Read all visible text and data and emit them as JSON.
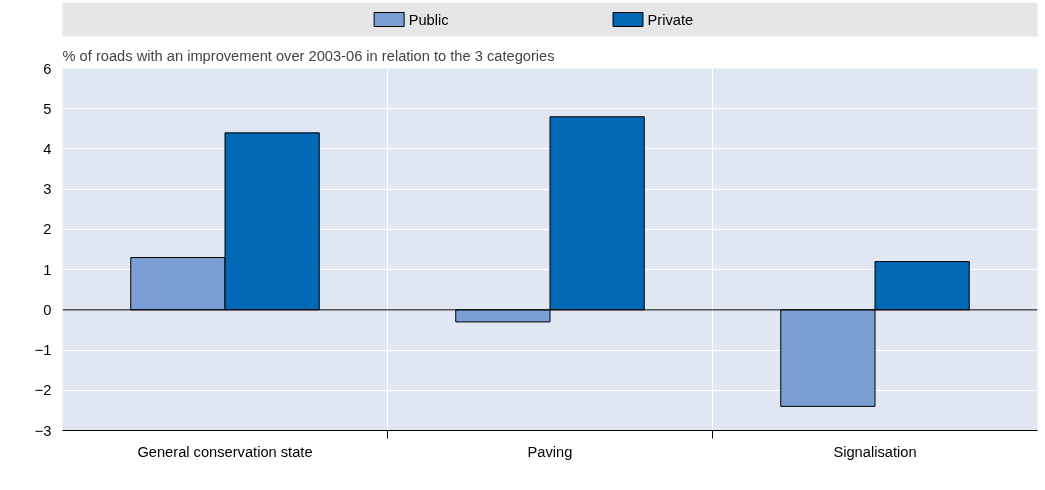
{
  "chart_data": {
    "type": "bar",
    "ylabel": "% of roads with an improvement over 2003-06 in relation to the 3 categories",
    "categories": [
      "General conservation state",
      "Paving",
      "Signalisation"
    ],
    "series": [
      {
        "name": "Public",
        "color": "#7b9fd4",
        "values": [
          1.3,
          -0.3,
          -2.4
        ]
      },
      {
        "name": "Private",
        "color": "#0068b4",
        "values": [
          4.4,
          4.8,
          1.2
        ]
      }
    ],
    "ylim": [
      -3,
      6
    ],
    "yticks": [
      -3,
      -2,
      -1,
      0,
      1,
      2,
      3,
      4,
      5,
      6
    ],
    "grid": true,
    "legend": "top"
  }
}
